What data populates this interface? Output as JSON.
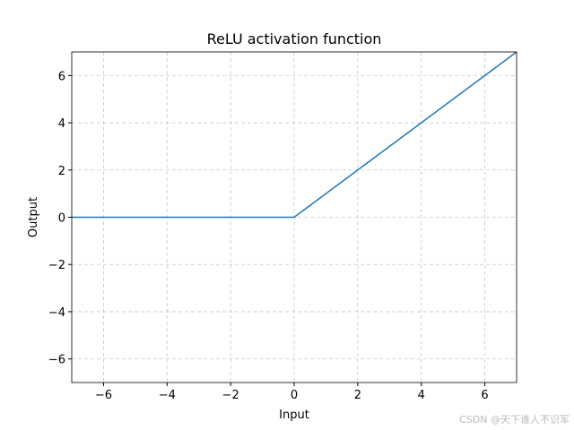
{
  "chart_data": {
    "type": "line",
    "title": "ReLU activation function",
    "x_label": "Input",
    "y_label": "Output",
    "x": [
      -7,
      0,
      7
    ],
    "series": [
      {
        "name": "ReLU",
        "color": "#1f77b4",
        "values": [
          0,
          0,
          7
        ]
      }
    ],
    "xlim": [
      -7,
      7
    ],
    "ylim": [
      -7,
      7
    ],
    "xticks": [
      {
        "value": -6,
        "label": "−6"
      },
      {
        "value": -4,
        "label": "−4"
      },
      {
        "value": -2,
        "label": "−2"
      },
      0,
      2,
      4,
      6
    ],
    "yticks": [
      {
        "value": -6,
        "label": "−6"
      },
      {
        "value": -4,
        "label": "−4"
      },
      {
        "value": -2,
        "label": "−2"
      },
      0,
      2,
      4,
      6
    ],
    "grid": true,
    "watermark": "CSDN @天下谁人不识军"
  }
}
